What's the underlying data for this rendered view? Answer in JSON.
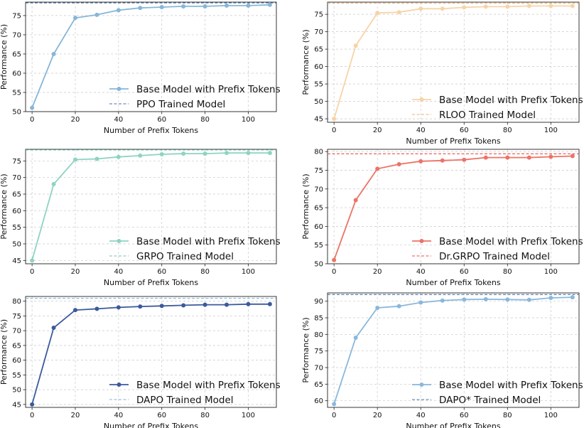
{
  "chart_data": [
    {
      "type": "line",
      "xlabel": "Number of Prefix Tokens",
      "ylabel": "Performance (%)",
      "xlim": [
        -3,
        113
      ],
      "ylim": [
        50,
        78.5
      ],
      "xticks": [
        0,
        20,
        40,
        60,
        80,
        100
      ],
      "yticks": [
        50,
        55,
        60,
        65,
        70,
        75
      ],
      "grid": true,
      "legend": "lower-right",
      "series": [
        {
          "name": "Base Model with Prefix Tokens",
          "color": "#86b6d8",
          "x": [
            0,
            10,
            20,
            30,
            40,
            50,
            60,
            70,
            80,
            90,
            100,
            110
          ],
          "values": [
            51.0,
            65.0,
            74.4,
            75.2,
            76.4,
            77.0,
            77.2,
            77.4,
            77.4,
            77.6,
            77.6,
            77.8
          ]
        },
        {
          "name": "PPO Trained Model",
          "color": "#4a6fa5",
          "style": "dashed",
          "hline": 78.3
        }
      ]
    },
    {
      "type": "line",
      "xlabel": "Number of Prefix Tokens",
      "ylabel": "Performance (%)",
      "xlim": [
        -3,
        113
      ],
      "ylim": [
        44,
        78.5
      ],
      "xticks": [
        0,
        20,
        40,
        60,
        80,
        100
      ],
      "yticks": [
        45,
        50,
        55,
        60,
        65,
        70,
        75
      ],
      "grid": true,
      "legend": "lower-right",
      "series": [
        {
          "name": "Base Model with Prefix Tokens",
          "color": "#f7d4a6",
          "x": [
            0,
            10,
            20,
            30,
            40,
            50,
            60,
            70,
            80,
            90,
            100,
            110
          ],
          "values": [
            45.0,
            66.0,
            75.4,
            75.6,
            76.6,
            76.6,
            77.0,
            77.2,
            77.2,
            77.4,
            77.4,
            77.4
          ]
        },
        {
          "name": "RLOO Trained Model",
          "color": "#ebb07a",
          "style": "dashed",
          "hline": 78.2
        }
      ]
    },
    {
      "type": "line",
      "xlabel": "Number of Prefix Tokens",
      "ylabel": "Performance (%)",
      "xlim": [
        -3,
        113
      ],
      "ylim": [
        44,
        78.5
      ],
      "xticks": [
        0,
        20,
        40,
        60,
        80,
        100
      ],
      "yticks": [
        45,
        50,
        55,
        60,
        65,
        70,
        75
      ],
      "grid": true,
      "legend": "lower-right",
      "series": [
        {
          "name": "Base Model with Prefix Tokens",
          "color": "#8ed3c4",
          "x": [
            0,
            10,
            20,
            30,
            40,
            50,
            60,
            70,
            80,
            90,
            100,
            110
          ],
          "values": [
            45.0,
            68.0,
            75.4,
            75.6,
            76.2,
            76.6,
            77.0,
            77.2,
            77.2,
            77.4,
            77.4,
            77.4
          ]
        },
        {
          "name": "GRPO Trained Model",
          "color": "#6fcab5",
          "style": "dashed",
          "hline": 78.3
        }
      ]
    },
    {
      "type": "line",
      "xlabel": "Number of Prefix Tokens",
      "ylabel": "Performance (%)",
      "xlim": [
        -3,
        113
      ],
      "ylim": [
        50,
        80.6
      ],
      "xticks": [
        0,
        20,
        40,
        60,
        80,
        100
      ],
      "yticks": [
        50,
        55,
        60,
        65,
        70,
        75,
        80
      ],
      "grid": true,
      "legend": "lower-right",
      "series": [
        {
          "name": "Base Model with Prefix Tokens",
          "color": "#ec7366",
          "x": [
            0,
            10,
            20,
            30,
            40,
            50,
            60,
            70,
            80,
            90,
            100,
            110
          ],
          "values": [
            51.0,
            67.0,
            75.4,
            76.6,
            77.4,
            77.6,
            77.8,
            78.4,
            78.4,
            78.4,
            78.6,
            78.8
          ]
        },
        {
          "name": "Dr.GRPO Trained Model",
          "color": "#ee4d4d",
          "style": "dashed",
          "hline": 79.4
        }
      ]
    },
    {
      "type": "line",
      "xlabel": "Number of Prefix Tokens",
      "ylabel": "Performance (%)",
      "xlim": [
        -3,
        113
      ],
      "ylim": [
        44,
        81.6
      ],
      "xticks": [
        0,
        20,
        40,
        60,
        80,
        100
      ],
      "yticks": [
        45,
        50,
        55,
        60,
        65,
        70,
        75,
        80
      ],
      "grid": true,
      "legend": "lower-right",
      "series": [
        {
          "name": "Base Model with Prefix Tokens",
          "color": "#3b5a9d",
          "x": [
            0,
            10,
            20,
            30,
            40,
            50,
            60,
            70,
            80,
            90,
            100,
            110
          ],
          "values": [
            45.0,
            71.0,
            77.0,
            77.4,
            77.9,
            78.2,
            78.4,
            78.6,
            78.8,
            78.8,
            79.0,
            79.0
          ]
        },
        {
          "name": "DAPO Trained Model",
          "color": "#7db4dc",
          "style": "dashed",
          "hline": 81.0
        }
      ]
    },
    {
      "type": "line",
      "xlabel": "Number of Prefix Tokens",
      "ylabel": "Performance (%)",
      "xlim": [
        -3,
        113
      ],
      "ylim": [
        58,
        92.5
      ],
      "xticks": [
        0,
        20,
        40,
        60,
        80,
        100
      ],
      "yticks": [
        60,
        65,
        70,
        75,
        80,
        85,
        90
      ],
      "grid": true,
      "legend": "lower-right",
      "series": [
        {
          "name": "Base Model with Prefix Tokens",
          "color": "#8ab8dc",
          "x": [
            0,
            10,
            20,
            30,
            40,
            50,
            60,
            70,
            80,
            90,
            100,
            110
          ],
          "values": [
            59.0,
            79.0,
            88.0,
            88.5,
            89.6,
            90.2,
            90.5,
            90.6,
            90.5,
            90.4,
            91.0,
            91.2
          ]
        },
        {
          "name": "DAPO* Trained Model",
          "color": "#4a73a6",
          "style": "dashed",
          "hline": 92.0
        }
      ]
    }
  ]
}
